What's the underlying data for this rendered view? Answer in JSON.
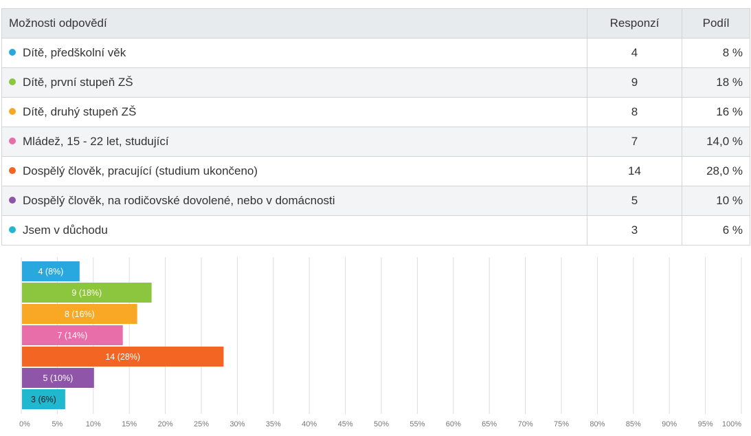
{
  "table": {
    "headers": {
      "option": "Možnosti odpovědí",
      "responses": "Responzí",
      "share": "Podíl"
    },
    "rows": [
      {
        "label": "Dítě, předškolní věk",
        "responses": "4",
        "share": "8 %",
        "color": "#29a8e0"
      },
      {
        "label": "Dítě, první stupeň ZŠ",
        "responses": "9",
        "share": "18 %",
        "color": "#8cc63f"
      },
      {
        "label": "Dítě, druhý stupeň ZŠ",
        "responses": "8",
        "share": "16 %",
        "color": "#f9a825"
      },
      {
        "label": "Mládež, 15 - 22 let, studující",
        "responses": "7",
        "share": "14,0 %",
        "color": "#e86ea9"
      },
      {
        "label": "Dospělý člověk, pracující (studium ukončeno)",
        "responses": "14",
        "share": "28,0 %",
        "color": "#f26522"
      },
      {
        "label": "Dospělý člověk, na rodičovské dovolené, nebo v domácnosti",
        "responses": "5",
        "share": "10 %",
        "color": "#8e55a8"
      },
      {
        "label": "Jsem v důchodu",
        "responses": "3",
        "share": "6 %",
        "color": "#1fb8cf"
      }
    ]
  },
  "chart_data": {
    "type": "bar",
    "orientation": "horizontal",
    "categories": [
      "Dítě, předškolní věk",
      "Dítě, první stupeň ZŠ",
      "Dítě, druhý stupeň ZŠ",
      "Mládež, 15 - 22 let, studující",
      "Dospělý člověk, pracující (studium ukončeno)",
      "Dospělý člověk, na rodičovské dovolené, nebo v domácnosti",
      "Jsem v důchodu"
    ],
    "values": [
      8,
      18,
      16,
      14,
      28,
      10,
      6
    ],
    "counts": [
      4,
      9,
      8,
      7,
      14,
      5,
      3
    ],
    "bar_labels": [
      "4 (8%)",
      "9 (18%)",
      "8 (16%)",
      "7 (14%)",
      "14 (28%)",
      "5 (10%)",
      "3 (6%)"
    ],
    "colors": [
      "#29a8e0",
      "#8cc63f",
      "#f9a825",
      "#e86ea9",
      "#f26522",
      "#8e55a8",
      "#1fb8cf"
    ],
    "xlim": [
      0,
      100
    ],
    "xticks": [
      0,
      5,
      10,
      15,
      20,
      25,
      30,
      35,
      40,
      45,
      50,
      55,
      60,
      65,
      70,
      75,
      80,
      85,
      90,
      95,
      100
    ],
    "xtick_labels": [
      "0%",
      "5%",
      "10%",
      "15%",
      "20%",
      "25%",
      "30%",
      "35%",
      "40%",
      "45%",
      "50%",
      "55%",
      "60%",
      "65%",
      "70%",
      "75%",
      "80%",
      "85%",
      "90%",
      "95%",
      "100%"
    ],
    "grid": true,
    "legend": "none",
    "title": "",
    "xlabel": "",
    "ylabel": ""
  }
}
